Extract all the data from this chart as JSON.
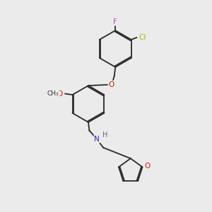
{
  "bg_color": "#ebebeb",
  "bond_color": "#2a2a2a",
  "atom_colors": {
    "F": "#cc44cc",
    "Cl": "#88cc00",
    "O": "#cc2200",
    "N": "#2222cc",
    "H": "#666666",
    "C": "#2a2a2a"
  },
  "lw": 1.3,
  "dbl_off": 0.055,
  "fs": 7.0
}
